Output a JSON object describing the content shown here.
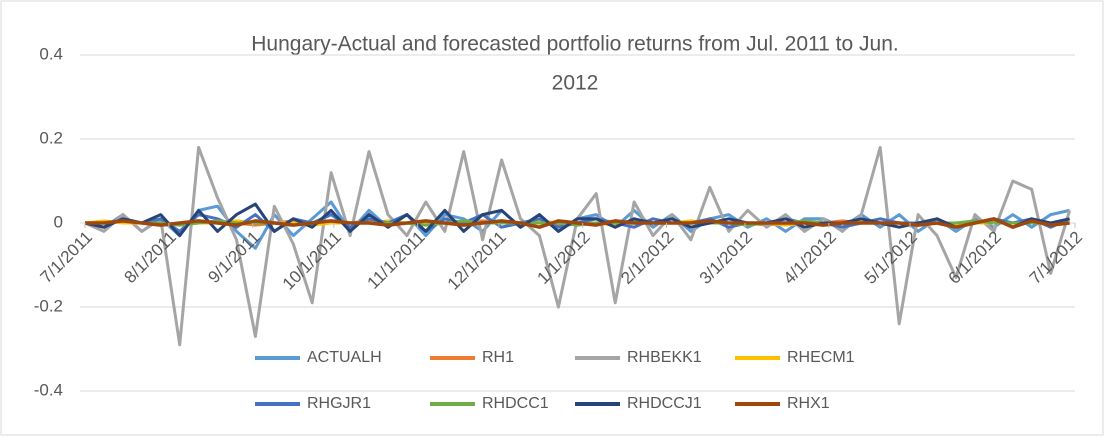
{
  "chart_data": {
    "type": "line",
    "title": [
      "Hungary-Actual and forecasted portfolio returns from Jul. 2011 to Jun.",
      "2012"
    ],
    "x": [
      "2011-07-01",
      "2011-07-08",
      "2011-07-15",
      "2011-07-22",
      "2011-07-29",
      "2011-08-05",
      "2011-08-12",
      "2011-08-19",
      "2011-08-26",
      "2011-09-02",
      "2011-09-09",
      "2011-09-16",
      "2011-09-23",
      "2011-09-30",
      "2011-10-07",
      "2011-10-14",
      "2011-10-21",
      "2011-10-28",
      "2011-11-04",
      "2011-11-11",
      "2011-11-18",
      "2011-11-25",
      "2011-12-02",
      "2011-12-09",
      "2011-12-16",
      "2011-12-23",
      "2011-12-30",
      "2012-01-06",
      "2012-01-13",
      "2012-01-20",
      "2012-01-27",
      "2012-02-03",
      "2012-02-10",
      "2012-02-17",
      "2012-02-24",
      "2012-03-02",
      "2012-03-09",
      "2012-03-16",
      "2012-03-23",
      "2012-03-30",
      "2012-04-06",
      "2012-04-13",
      "2012-04-20",
      "2012-04-27",
      "2012-05-04",
      "2012-05-11",
      "2012-05-18",
      "2012-05-25",
      "2012-06-01",
      "2012-06-08",
      "2012-06-15",
      "2012-06-22",
      "2012-06-29"
    ],
    "series": [
      {
        "name": "ACTUALH",
        "color": "#5b9bd5",
        "values": [
          0,
          -0.01,
          0.02,
          -0.02,
          0.01,
          -0.03,
          0.03,
          0.04,
          -0.02,
          -0.06,
          0.02,
          -0.03,
          0.01,
          0.05,
          -0.02,
          0.03,
          -0.01,
          0.02,
          -0.03,
          0.02,
          0.01,
          -0.02,
          0.03,
          -0.01,
          0.02,
          -0.02,
          0.01,
          0.02,
          -0.01,
          0.03,
          -0.01,
          0.02,
          -0.02,
          0.01,
          0.02,
          -0.01,
          0.01,
          -0.02,
          0.01,
          0.01,
          -0.01,
          0.02,
          -0.01,
          0.02,
          -0.02,
          0.01,
          -0.02,
          0.01,
          -0.01,
          0.02,
          -0.01,
          0.02,
          0.03
        ]
      },
      {
        "name": "RH1",
        "color": "#ed7d31",
        "values": [
          0,
          0,
          0.005,
          0,
          -0.005,
          0,
          0.005,
          0,
          0,
          -0.005,
          0,
          0.005,
          0,
          0,
          0,
          0.005,
          0,
          0,
          -0.005,
          0,
          0,
          0.005,
          0,
          0,
          0,
          -0.005,
          0,
          0,
          0.005,
          0,
          0,
          0,
          0,
          0.005,
          0,
          0,
          -0.005,
          0,
          0,
          0,
          0.005,
          0,
          0,
          0,
          -0.005,
          0,
          0,
          0,
          0.005,
          0,
          0,
          0,
          0
        ]
      },
      {
        "name": "RHBEKK1",
        "color": "#a5a5a5",
        "values": [
          0,
          -0.02,
          0.02,
          -0.02,
          0.01,
          -0.29,
          0.18,
          0.06,
          -0.04,
          -0.27,
          0.04,
          -0.05,
          -0.19,
          0.12,
          -0.03,
          0.17,
          0.02,
          -0.03,
          0.05,
          -0.02,
          0.17,
          -0.04,
          0.15,
          0.01,
          -0.03,
          -0.2,
          0.01,
          0.07,
          -0.19,
          0.05,
          -0.03,
          0.02,
          -0.04,
          0.085,
          -0.02,
          0.03,
          -0.01,
          0.02,
          -0.02,
          0.01,
          -0.02,
          0.02,
          0.18,
          -0.24,
          0.02,
          -0.03,
          -0.13,
          0.02,
          -0.02,
          0.1,
          0.08,
          -0.12,
          0.03
        ]
      },
      {
        "name": "RHECM1",
        "color": "#ffc000",
        "values": [
          0,
          0.005,
          0,
          0,
          0,
          -0.005,
          0,
          0,
          0.005,
          0,
          0,
          0,
          -0.005,
          0,
          0,
          0,
          0.005,
          0,
          0,
          0,
          -0.005,
          0,
          0,
          0,
          0.005,
          0,
          0,
          0,
          -0.005,
          0,
          0,
          0,
          0.005,
          0,
          0,
          0,
          0,
          -0.005,
          0,
          0,
          0,
          0.005,
          0,
          0,
          0,
          0,
          -0.005,
          0,
          0,
          0,
          0.005,
          0,
          0
        ]
      },
      {
        "name": "RHGJR1",
        "color": "#4472c4",
        "values": [
          0,
          -0.01,
          0.01,
          0,
          0.01,
          -0.02,
          0.02,
          0.01,
          -0.01,
          0.02,
          -0.02,
          0.01,
          0,
          0.02,
          -0.01,
          0.01,
          0,
          0.02,
          -0.02,
          0.01,
          0,
          0.02,
          -0.01,
          0,
          0.01,
          -0.01,
          0,
          0.01,
          0,
          -0.01,
          0.01,
          0,
          0,
          0.01,
          -0.01,
          0,
          0,
          0.01,
          0,
          0,
          -0.01,
          0,
          0.01,
          0,
          0,
          0,
          -0.01,
          0,
          0.01,
          0,
          0.01,
          -0.01,
          0.01
        ]
      },
      {
        "name": "RHDCC1",
        "color": "#70ad47",
        "values": [
          0,
          0,
          0.005,
          0,
          0,
          -0.005,
          0,
          0.005,
          0,
          0,
          0,
          -0.005,
          0,
          0.005,
          0,
          0,
          0,
          0,
          -0.005,
          0,
          0.005,
          0,
          0,
          0,
          0,
          0,
          -0.005,
          0,
          0,
          0.005,
          0,
          0,
          0,
          0,
          0,
          -0.005,
          0,
          0,
          0.005,
          0,
          0,
          0,
          0,
          0,
          -0.005,
          0,
          0,
          0.005,
          0,
          0,
          0,
          0,
          0
        ]
      },
      {
        "name": "RHDCCJ1",
        "color": "#264478",
        "values": [
          0,
          -0.01,
          0.01,
          0,
          0.02,
          -0.03,
          0.03,
          -0.02,
          0.02,
          0.045,
          -0.02,
          0.01,
          -0.01,
          0.03,
          -0.02,
          0.02,
          -0.01,
          0.02,
          -0.02,
          0.03,
          -0.02,
          0.02,
          0.03,
          -0.01,
          0.02,
          -0.02,
          0.01,
          0.01,
          -0.01,
          0.01,
          0,
          0.01,
          -0.01,
          0,
          0.01,
          0,
          0,
          0.01,
          -0.01,
          0,
          0,
          0.01,
          0,
          -0.01,
          0,
          0.01,
          -0.01,
          0,
          0.01,
          -0.01,
          0.01,
          0,
          0.01
        ]
      },
      {
        "name": "RHX1",
        "color": "#9e480e",
        "values": [
          0,
          0,
          0.005,
          0,
          -0.005,
          0,
          0.005,
          0,
          -0.005,
          0.005,
          0,
          -0.005,
          0,
          0.005,
          0,
          0,
          -0.005,
          0,
          0.005,
          0,
          -0.005,
          0,
          0.005,
          0,
          -0.01,
          0.005,
          0,
          -0.005,
          0.005,
          0,
          0,
          0,
          0,
          0.005,
          0,
          0,
          0,
          0,
          0,
          -0.005,
          0,
          0,
          0,
          0,
          -0.005,
          0,
          -0.01,
          0,
          0.01,
          -0.01,
          0.005,
          -0.005,
          0
        ]
      }
    ],
    "xlim": [
      "2011-07-01",
      "2012-07-01"
    ],
    "xticks": [
      {
        "value": "2011-07-01",
        "label": "7/1/2011"
      },
      {
        "value": "2011-08-01",
        "label": "8/1/2011"
      },
      {
        "value": "2011-09-01",
        "label": "9/1/2011"
      },
      {
        "value": "2011-10-01",
        "label": "10/1/2011"
      },
      {
        "value": "2011-11-01",
        "label": "11/1/2011"
      },
      {
        "value": "2011-12-01",
        "label": "12/1/2011"
      },
      {
        "value": "2012-01-01",
        "label": "1/1/2012"
      },
      {
        "value": "2012-02-01",
        "label": "2/1/2012"
      },
      {
        "value": "2012-03-01",
        "label": "3/1/2012"
      },
      {
        "value": "2012-04-01",
        "label": "4/1/2012"
      },
      {
        "value": "2012-05-01",
        "label": "5/1/2012"
      },
      {
        "value": "2012-06-01",
        "label": "6/1/2012"
      },
      {
        "value": "2012-07-01",
        "label": "7/1/2012"
      }
    ],
    "ylim": [
      -0.4,
      0.4
    ],
    "yticks": [
      -0.4,
      -0.2,
      0,
      0.2,
      0.4
    ],
    "grid": true,
    "legend": "bottom"
  }
}
